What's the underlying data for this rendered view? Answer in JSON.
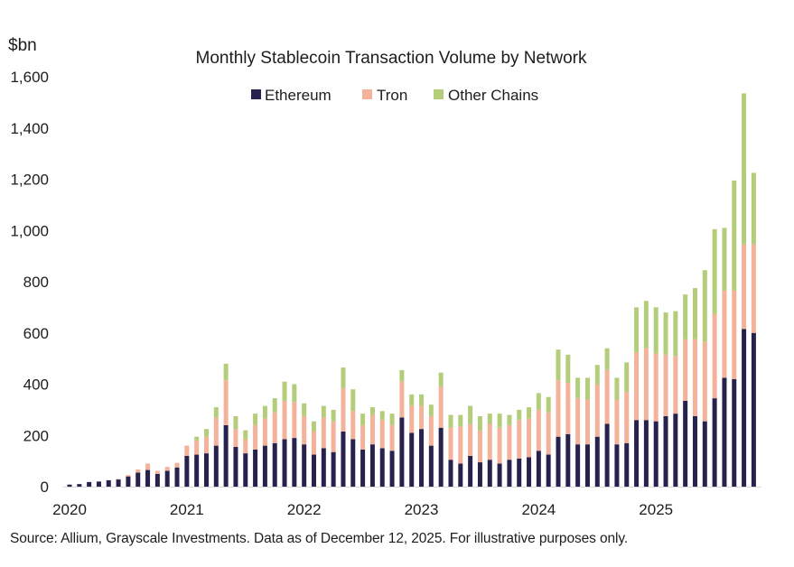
{
  "chart_data": {
    "type": "bar",
    "stacked": true,
    "title": "Monthly Stablecoin Transaction Volume by Network",
    "ylabel": "$bn",
    "xlabel": "",
    "ylim": [
      0,
      1600
    ],
    "yticks": [
      0,
      200,
      400,
      600,
      800,
      1000,
      1200,
      1400,
      1600
    ],
    "ytick_labels": [
      "0",
      "200",
      "400",
      "600",
      "800",
      "1,000",
      "1,200",
      "1,400",
      "1,600"
    ],
    "xtick_labels": [
      "2020",
      "2021",
      "2022",
      "2023",
      "2024",
      "2025"
    ],
    "xtick_positions_month_index": [
      0,
      12,
      24,
      36,
      48,
      60
    ],
    "grid": false,
    "legend_position": "top-center",
    "start_month": "2020-01",
    "end_month": "2025-11",
    "series": [
      {
        "name": "Ethereum",
        "color": "#26224d",
        "values": [
          8,
          10,
          18,
          20,
          25,
          28,
          40,
          55,
          65,
          50,
          62,
          75,
          120,
          125,
          130,
          160,
          240,
          155,
          130,
          145,
          160,
          170,
          185,
          190,
          165,
          125,
          150,
          135,
          215,
          185,
          145,
          165,
          150,
          140,
          270,
          210,
          225,
          160,
          230,
          105,
          90,
          120,
          95,
          105,
          90,
          105,
          110,
          115,
          140,
          125,
          195,
          205,
          165,
          165,
          195,
          245,
          165,
          170,
          260,
          260,
          255,
          275,
          285,
          335,
          275,
          255,
          345,
          425,
          420,
          615,
          600
        ]
      },
      {
        "name": "Tron",
        "color": "#f4b29a",
        "values": [
          0,
          0,
          0,
          0,
          0,
          2,
          5,
          12,
          25,
          12,
          15,
          18,
          40,
          55,
          65,
          110,
          175,
          70,
          55,
          95,
          105,
          120,
          150,
          140,
          110,
          90,
          120,
          120,
          170,
          110,
          95,
          115,
          110,
          100,
          140,
          105,
          90,
          115,
          160,
          125,
          145,
          125,
          125,
          140,
          140,
          135,
          150,
          150,
          160,
          165,
          220,
          200,
          180,
          175,
          205,
          210,
          175,
          200,
          265,
          280,
          265,
          240,
          225,
          240,
          300,
          310,
          330,
          340,
          345,
          330,
          345
        ]
      },
      {
        "name": "Other Chains",
        "color": "#b4cd7a",
        "values": [
          0,
          0,
          0,
          0,
          0,
          0,
          0,
          0,
          0,
          0,
          0,
          0,
          0,
          15,
          30,
          40,
          65,
          50,
          35,
          45,
          50,
          55,
          75,
          70,
          50,
          40,
          45,
          45,
          80,
          85,
          45,
          30,
          35,
          45,
          45,
          45,
          45,
          45,
          55,
          50,
          45,
          70,
          55,
          40,
          55,
          40,
          40,
          45,
          65,
          60,
          120,
          110,
          80,
          85,
          75,
          85,
          85,
          115,
          175,
          185,
          180,
          165,
          175,
          175,
          200,
          280,
          330,
          245,
          430,
          590,
          280
        ]
      }
    ],
    "source_note": "Source: Allium, Grayscale Investments. Data as of December 12, 2025. For illustrative purposes only."
  }
}
